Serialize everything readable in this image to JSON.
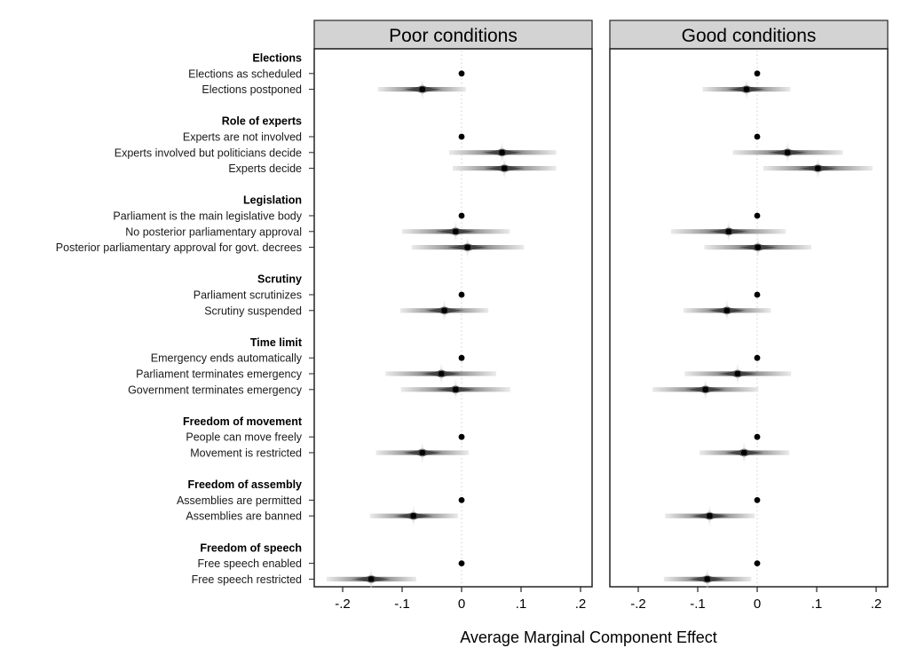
{
  "chart_data": {
    "type": "scatter",
    "subtype": "forest-plot-with-confidence-gradient",
    "xlabel": "Average Marginal Component Effect",
    "xlim": [
      -0.25,
      0.22
    ],
    "xticks": [
      -0.2,
      -0.1,
      0,
      0.1,
      0.2
    ],
    "xtick_labels": [
      "-.2",
      "-.1",
      "0",
      ".1",
      ".2"
    ],
    "reference_line": 0,
    "grid": false,
    "panels": [
      "Poor conditions",
      "Good conditions"
    ],
    "rows": [
      {
        "type": "group",
        "label": "Elections"
      },
      {
        "type": "level",
        "label": "Elections as scheduled",
        "baseline": true
      },
      {
        "type": "level",
        "label": "Elections postponed"
      },
      {
        "type": "spacer"
      },
      {
        "type": "group",
        "label": "Role of experts"
      },
      {
        "type": "level",
        "label": "Experts are not involved",
        "baseline": true
      },
      {
        "type": "level",
        "label": "Experts involved but politicians decide"
      },
      {
        "type": "level",
        "label": "Experts decide"
      },
      {
        "type": "spacer"
      },
      {
        "type": "group",
        "label": "Legislation"
      },
      {
        "type": "level",
        "label": "Parliament is the main legislative body",
        "baseline": true
      },
      {
        "type": "level",
        "label": "No posterior parliamentary approval"
      },
      {
        "type": "level",
        "label": "Posterior parliamentary approval for govt. decrees"
      },
      {
        "type": "spacer"
      },
      {
        "type": "group",
        "label": "Scrutiny"
      },
      {
        "type": "level",
        "label": "Parliament scrutinizes",
        "baseline": true
      },
      {
        "type": "level",
        "label": "Scrutiny suspended"
      },
      {
        "type": "spacer"
      },
      {
        "type": "group",
        "label": "Time limit"
      },
      {
        "type": "level",
        "label": "Emergency ends automatically",
        "baseline": true
      },
      {
        "type": "level",
        "label": "Parliament terminates emergency"
      },
      {
        "type": "level",
        "label": "Government terminates emergency"
      },
      {
        "type": "spacer"
      },
      {
        "type": "group",
        "label": "Freedom of movement"
      },
      {
        "type": "level",
        "label": "People can move freely",
        "baseline": true
      },
      {
        "type": "level",
        "label": "Movement is restricted"
      },
      {
        "type": "spacer"
      },
      {
        "type": "group",
        "label": "Freedom of assembly"
      },
      {
        "type": "level",
        "label": "Assemblies are permitted",
        "baseline": true
      },
      {
        "type": "level",
        "label": "Assemblies are banned"
      },
      {
        "type": "spacer"
      },
      {
        "type": "group",
        "label": "Freedom of speech"
      },
      {
        "type": "level",
        "label": "Free speech enabled",
        "baseline": true
      },
      {
        "type": "level",
        "label": "Free speech restricted"
      }
    ],
    "series": [
      {
        "name": "Poor conditions",
        "estimates": {
          "Elections as scheduled": {
            "est": 0,
            "lo": 0,
            "hi": 0
          },
          "Elections postponed": {
            "est": -0.066,
            "lo": -0.141,
            "hi": 0.007
          },
          "Experts are not involved": {
            "est": 0,
            "lo": 0,
            "hi": 0
          },
          "Experts involved but politicians decide": {
            "est": 0.068,
            "lo": -0.021,
            "hi": 0.159
          },
          "Experts decide": {
            "est": 0.072,
            "lo": -0.015,
            "hi": 0.159
          },
          "Parliament is the main legislative body": {
            "est": 0,
            "lo": 0,
            "hi": 0
          },
          "No posterior parliamentary approval": {
            "est": -0.01,
            "lo": -0.1,
            "hi": 0.081
          },
          "Posterior parliamentary approval for govt. decrees": {
            "est": 0.01,
            "lo": -0.084,
            "hi": 0.105
          },
          "Parliament scrutinizes": {
            "est": 0,
            "lo": 0,
            "hi": 0
          },
          "Scrutiny suspended": {
            "est": -0.029,
            "lo": -0.103,
            "hi": 0.045
          },
          "Emergency ends automatically": {
            "est": 0,
            "lo": 0,
            "hi": 0
          },
          "Parliament terminates emergency": {
            "est": -0.034,
            "lo": -0.128,
            "hi": 0.058
          },
          "Government terminates emergency": {
            "est": -0.01,
            "lo": -0.102,
            "hi": 0.082
          },
          "People can move freely": {
            "est": 0,
            "lo": 0,
            "hi": 0
          },
          "Movement is restricted": {
            "est": -0.066,
            "lo": -0.144,
            "hi": 0.012
          },
          "Assemblies are permitted": {
            "est": 0,
            "lo": 0,
            "hi": 0
          },
          "Assemblies are banned": {
            "est": -0.081,
            "lo": -0.154,
            "hi": -0.006
          },
          "Free speech enabled": {
            "est": 0,
            "lo": 0,
            "hi": 0
          },
          "Free speech restricted": {
            "est": -0.152,
            "lo": -0.227,
            "hi": -0.076
          }
        }
      },
      {
        "name": "Good conditions",
        "estimates": {
          "Elections as scheduled": {
            "est": 0,
            "lo": 0,
            "hi": 0
          },
          "Elections postponed": {
            "est": -0.018,
            "lo": -0.092,
            "hi": 0.056
          },
          "Experts are not involved": {
            "est": 0,
            "lo": 0,
            "hi": 0
          },
          "Experts involved but politicians decide": {
            "est": 0.051,
            "lo": -0.041,
            "hi": 0.144
          },
          "Experts decide": {
            "est": 0.102,
            "lo": 0.01,
            "hi": 0.194
          },
          "Parliament is the main legislative body": {
            "est": 0,
            "lo": 0,
            "hi": 0
          },
          "No posterior parliamentary approval": {
            "est": -0.048,
            "lo": -0.145,
            "hi": 0.048
          },
          "Posterior parliamentary approval for govt. decrees": {
            "est": 0.001,
            "lo": -0.089,
            "hi": 0.091
          },
          "Parliament scrutinizes": {
            "est": 0,
            "lo": 0,
            "hi": 0
          },
          "Scrutiny suspended": {
            "est": -0.051,
            "lo": -0.124,
            "hi": 0.023
          },
          "Emergency ends automatically": {
            "est": 0,
            "lo": 0,
            "hi": 0
          },
          "Parliament terminates emergency": {
            "est": -0.033,
            "lo": -0.122,
            "hi": 0.057
          },
          "Government terminates emergency": {
            "est": -0.087,
            "lo": -0.176,
            "hi": 0.002
          },
          "People can move freely": {
            "est": 0,
            "lo": 0,
            "hi": 0
          },
          "Movement is restricted": {
            "est": -0.022,
            "lo": -0.097,
            "hi": 0.054
          },
          "Assemblies are permitted": {
            "est": 0,
            "lo": 0,
            "hi": 0
          },
          "Assemblies are banned": {
            "est": -0.08,
            "lo": -0.155,
            "hi": -0.004
          },
          "Free speech enabled": {
            "est": 0,
            "lo": 0,
            "hi": 0
          },
          "Free speech restricted": {
            "est": -0.084,
            "lo": -0.157,
            "hi": -0.01
          }
        }
      }
    ],
    "colors": {
      "strip_fill": "#d3d3d3",
      "point": "#000000",
      "ci_dark": "#404040",
      "ci_light": "#e8e8e8",
      "reference_line": "#cccccc"
    }
  }
}
